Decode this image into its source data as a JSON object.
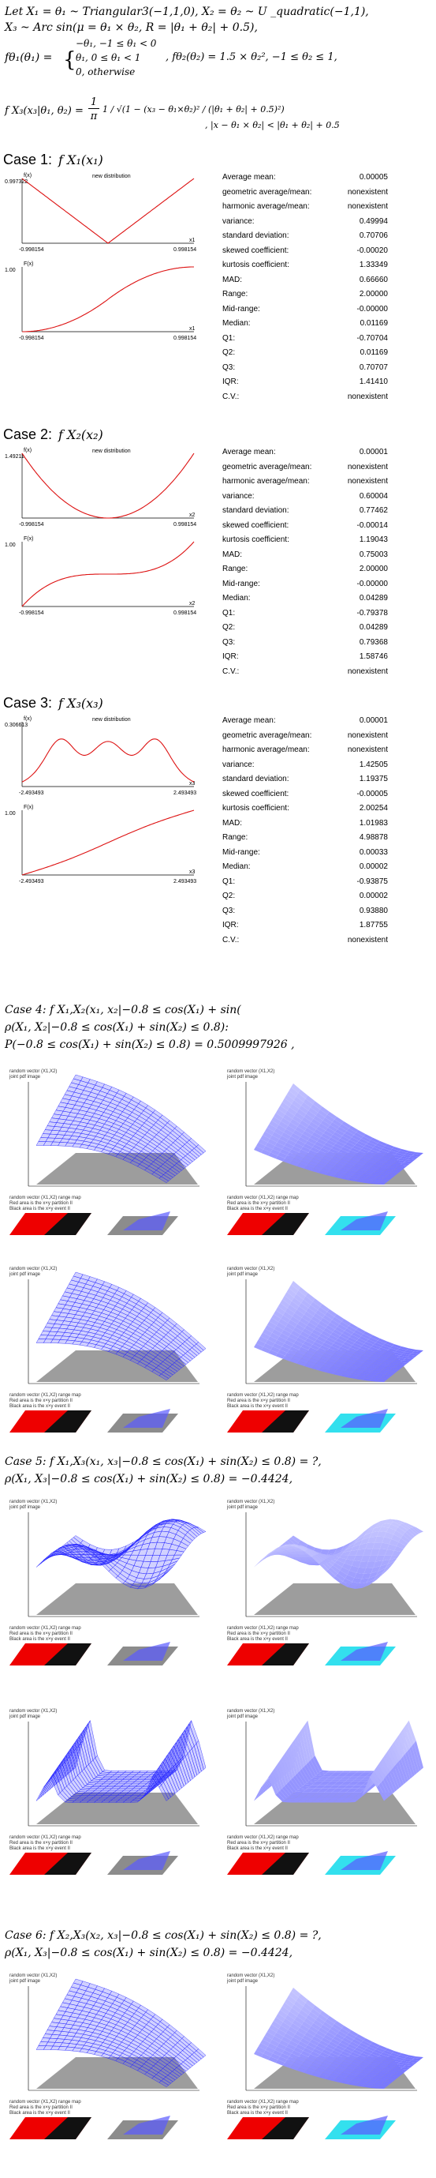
{
  "intro": {
    "line1": "Let  X₁ = θ₁ ~ Triangular3(−1,1,0), X₂ = θ₂ ~ U _quadratic(−1,1),",
    "line2": "X₃ ~ Arc sin(μ = θ₁ × θ₂, R = |θ₁ + θ₂| + 0.5),",
    "f1_lhs": "fθ₁(θ₁) =",
    "f1_cases": [
      "−θ₁, −1 ≤ θ₁ < 0",
      "θ₁, 0 ≤ θ₁ < 1",
      "0, otherwise"
    ],
    "f2": ",  fθ₂(θ₂) = 1.5 × θ₂², −1 ≤ θ₂ ≤ 1,",
    "f3_lhs": "f X₃(x₃|θ₁, θ₂) =",
    "f3_frac_num": "1",
    "f3_frac_den": "π",
    "f3_inner": "1 / √(1 − (x₃ − θ₁×θ₂)² / (|θ₁ + θ₂| + 0.5)²)",
    "f3_cond": ", |x − θ₁ × θ₂| < |θ₁ + θ₂| + 0.5"
  },
  "cases": [
    {
      "label": "Case 1:",
      "fn": "f X₁(x₁)",
      "pdf_title": "new distribution",
      "pdf_ylabel": "f(x)",
      "cdf_ylabel": "F(x)",
      "pdf_ytop": "0.997322",
      "cdf_ytop": "1.00",
      "x_left": "-0.998154",
      "x_right": "0.998154",
      "x_axis": "x1",
      "stats": [
        [
          "Average mean:",
          "0.00005"
        ],
        [
          "geometric average/mean:",
          "nonexistent"
        ],
        [
          "harmonic average/mean:",
          "nonexistent"
        ],
        [
          "variance:",
          "0.49994"
        ],
        [
          "standard deviation:",
          "0.70706"
        ],
        [
          "skewed coefficient:",
          "-0.00020"
        ],
        [
          "kurtosis coefficient:",
          "1.33349"
        ],
        [
          "MAD:",
          "0.66660"
        ],
        [
          "Range:",
          "2.00000"
        ],
        [
          "Mid-range:",
          "-0.00000"
        ],
        [
          "Median:",
          "0.01169"
        ],
        [
          "Q1:",
          "-0.70704"
        ],
        [
          "Q2:",
          "0.01169"
        ],
        [
          "Q3:",
          "0.70707"
        ],
        [
          "IQR:",
          "1.41410"
        ],
        [
          "C.V.:",
          "nonexistent"
        ]
      ]
    },
    {
      "label": "Case 2:",
      "fn": "f X₂(x₂)",
      "pdf_title": "new distribution",
      "pdf_ylabel": "f(x)",
      "cdf_ylabel": "F(x)",
      "pdf_ytop": "1.49211",
      "cdf_ytop": "1.00",
      "x_left": "-0.998154",
      "x_right": "0.998154",
      "x_axis": "x2",
      "stats": [
        [
          "Average mean:",
          "0.00001"
        ],
        [
          "geometric average/mean:",
          "nonexistent"
        ],
        [
          "harmonic average/mean:",
          "nonexistent"
        ],
        [
          "variance:",
          "0.60004"
        ],
        [
          "standard deviation:",
          "0.77462"
        ],
        [
          "skewed coefficient:",
          "-0.00014"
        ],
        [
          "kurtosis coefficient:",
          "1.19043"
        ],
        [
          "MAD:",
          "0.75003"
        ],
        [
          "Range:",
          "2.00000"
        ],
        [
          "Mid-range:",
          "-0.00000"
        ],
        [
          "Median:",
          "0.04289"
        ],
        [
          "Q1:",
          "-0.79378"
        ],
        [
          "Q2:",
          "0.04289"
        ],
        [
          "Q3:",
          "0.79368"
        ],
        [
          "IQR:",
          "1.58746"
        ],
        [
          "C.V.:",
          "nonexistent"
        ]
      ]
    },
    {
      "label": "Case 3:",
      "fn": "f X₃(x₃)",
      "pdf_title": "new distribution",
      "pdf_ylabel": "f(x)",
      "cdf_ylabel": "F(x)",
      "pdf_ytop": "0.306613",
      "cdf_ytop": "1.00",
      "x_left": "-2.493493",
      "x_right": "2.493493",
      "x_axis": "x3",
      "stats": [
        [
          "Average mean:",
          "0.00001"
        ],
        [
          "geometric average/mean:",
          "nonexistent"
        ],
        [
          "harmonic average/mean:",
          "nonexistent"
        ],
        [
          "variance:",
          "1.42505"
        ],
        [
          "standard deviation:",
          "1.19375"
        ],
        [
          "skewed coefficient:",
          "-0.00005"
        ],
        [
          "kurtosis coefficient:",
          "2.00254"
        ],
        [
          "MAD:",
          "1.01983"
        ],
        [
          "Range:",
          "4.98878"
        ],
        [
          "Mid-range:",
          "0.00033"
        ],
        [
          "Median:",
          "0.00002"
        ],
        [
          "Q1:",
          "-0.93875"
        ],
        [
          "Q2:",
          "0.00002"
        ],
        [
          "Q3:",
          "0.93880"
        ],
        [
          "IQR:",
          "1.87755"
        ],
        [
          "C.V.:",
          "nonexistent"
        ]
      ]
    }
  ],
  "case4": {
    "line1": "Case 4:   f X₁,X₂(x₁, x₂|−0.8 ≤ cos(X₁) + sin(",
    "line2": "ρ(X₁, X₂|−0.8 ≤ cos(X₁) + sin(X₂) ≤ 0.8):",
    "line3": "P(−0.8 ≤ cos(X₁) + sin(X₂) ≤ 0.8) = 0.5009997926 ,"
  },
  "case5": {
    "line1": "Case 5: f X₁,X₃(x₁, x₃|−0.8 ≤ cos(X₁) + sin(X₂) ≤ 0.8) = ?,",
    "line2": "ρ(X₁, X₃|−0.8 ≤ cos(X₁) + sin(X₂) ≤ 0.8) = −0.4424,"
  },
  "case6": {
    "line1": "Case 6:   f X₂,X₃(x₂, x₃|−0.8 ≤ cos(X₁) + sin(X₂) ≤ 0.8) = ?,",
    "line2": "ρ(X₁, X₃|−0.8 ≤ cos(X₁) + sin(X₂) ≤ 0.8) = −0.4424,"
  },
  "plot3d": {
    "caption_a": "random vector (X1,X2)",
    "caption_b": "joint pdf image",
    "thumb_caption": "random vector (X1,X2) range map",
    "thumb_sub": "Red area is the x×y  partition II",
    "thumb_sub2": "Black area is the x×y  event II"
  },
  "colors": {
    "blue": "#2323ff",
    "red": "#ee0000",
    "gray": "#8c8c8c",
    "cyan": "#33e0ee"
  }
}
